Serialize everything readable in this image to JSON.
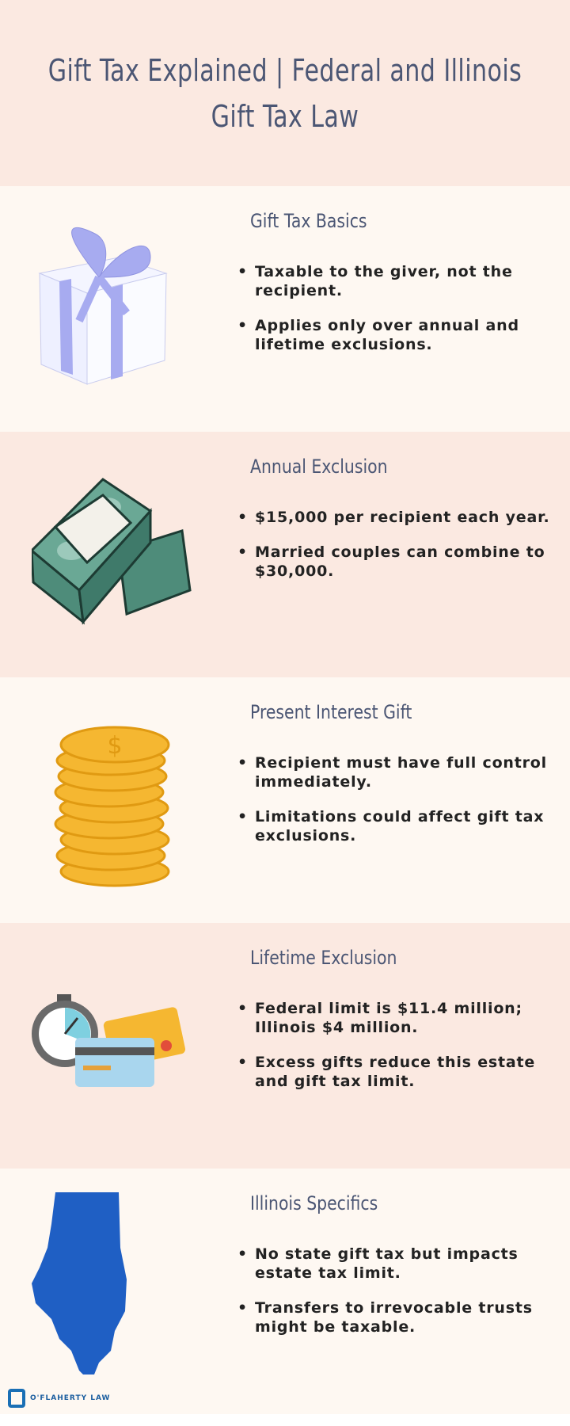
{
  "header": {
    "title": "Gift Tax Explained | Federal and Illinois Gift Tax Law"
  },
  "sections": [
    {
      "title": "Gift Tax Basics",
      "icon": "gift-box-icon",
      "bullets": [
        "Taxable to the giver, not the recipient.",
        "Applies only over annual and lifetime exclusions."
      ]
    },
    {
      "title": "Annual Exclusion",
      "icon": "money-stack-icon",
      "bullets": [
        "$15,000 per recipient each year.",
        "Married couples can combine to $30,000."
      ]
    },
    {
      "title": "Present Interest Gift",
      "icon": "coin-stack-icon",
      "bullets": [
        "Recipient must have full control immediately.",
        "Limitations could affect gift tax exclusions."
      ]
    },
    {
      "title": "Lifetime Exclusion",
      "icon": "stopwatch-credit-card-icon",
      "bullets": [
        "Federal limit is $11.4 million; Illinois $4 million.",
        "Excess gifts reduce this estate and gift tax limit."
      ]
    },
    {
      "title": "Illinois Specifics",
      "icon": "illinois-map-icon",
      "bullets": [
        "No state gift tax but impacts estate tax limit.",
        "Transfers to irrevocable trusts might be taxable."
      ]
    }
  ],
  "footer": {
    "logo_name": "O'FLAHERTY LAW"
  },
  "colors": {
    "header_bg": "#fbe9e1",
    "cream_bg": "#fef8f2",
    "title_text": "#4b5674",
    "illinois_blue": "#1f5fc4",
    "coin_gold": "#f5b731"
  }
}
